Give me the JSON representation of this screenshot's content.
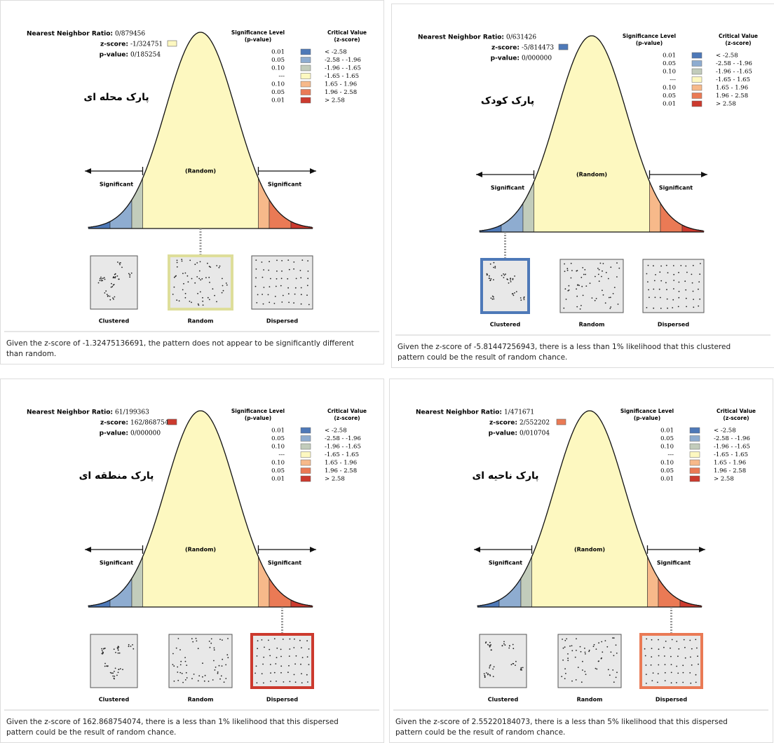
{
  "legend": {
    "header_p": [
      "Significance Level",
      "(p-value)"
    ],
    "header_z": [
      "Critical Value",
      "(z-score)"
    ],
    "rows": [
      {
        "p": "0.01",
        "z": "< -2.58",
        "color": "#4e79b8"
      },
      {
        "p": "0.05",
        "z": "-2.58 - -1.96",
        "color": "#8eacd0"
      },
      {
        "p": "0.10",
        "z": "-1.96 - -1.65",
        "color": "#c2ccbb"
      },
      {
        "p": "---",
        "z": "-1.65 - 1.65",
        "color": "#fdf8c0"
      },
      {
        "p": "0.10",
        "z": "1.65 - 1.96",
        "color": "#f7b98a"
      },
      {
        "p": "0.05",
        "z": "1.96 - 2.58",
        "color": "#ea7a55"
      },
      {
        "p": "0.01",
        "z": "> 2.58",
        "color": "#cc3a2e"
      }
    ]
  },
  "labels": {
    "random": "(Random)",
    "significant": "Significant",
    "ratio": "Nearest Neighbor Ratio:",
    "z": "z-score:",
    "p": "p-value:",
    "patterns": [
      "Clustered",
      "Random",
      "Dispersed"
    ]
  },
  "panels": [
    {
      "title": "پارک محله ای",
      "ratio": "0/879456",
      "z": "-1/324751",
      "p": "0/185254",
      "z_color": "#fdf8c0",
      "highlight": 1,
      "description": "Given the z-score of -1.32475136691, the pattern does not appear to be significantly different than random."
    },
    {
      "title": "پارک کودک",
      "ratio": "0/631426",
      "z": "-5/814473",
      "p": "0/000000",
      "z_color": "#4e79b8",
      "highlight": 0,
      "description": "Given the z-score of -5.81447256943, there is a less than 1% likelihood that this clustered pattern could be the result of random chance."
    },
    {
      "title": "پارک منطقه ای",
      "ratio": "61/199363",
      "z": "162/868754",
      "p": "0/000000",
      "z_color": "#cc3a2e",
      "highlight": 2,
      "description": "Given the z-score of 162.868754074, there is a less than 1% likelihood that this dispersed pattern could be the result of random chance."
    },
    {
      "title": "پارک ناحیه ای",
      "ratio": "1/471671",
      "z": "2/552202",
      "p": "0/010704",
      "z_color": "#ea7a55",
      "highlight": 2,
      "description": "Given the z-score of 2.55220184073, there is a less than 5% likelihood that this dispersed pattern could be the result of random chance."
    }
  ]
}
